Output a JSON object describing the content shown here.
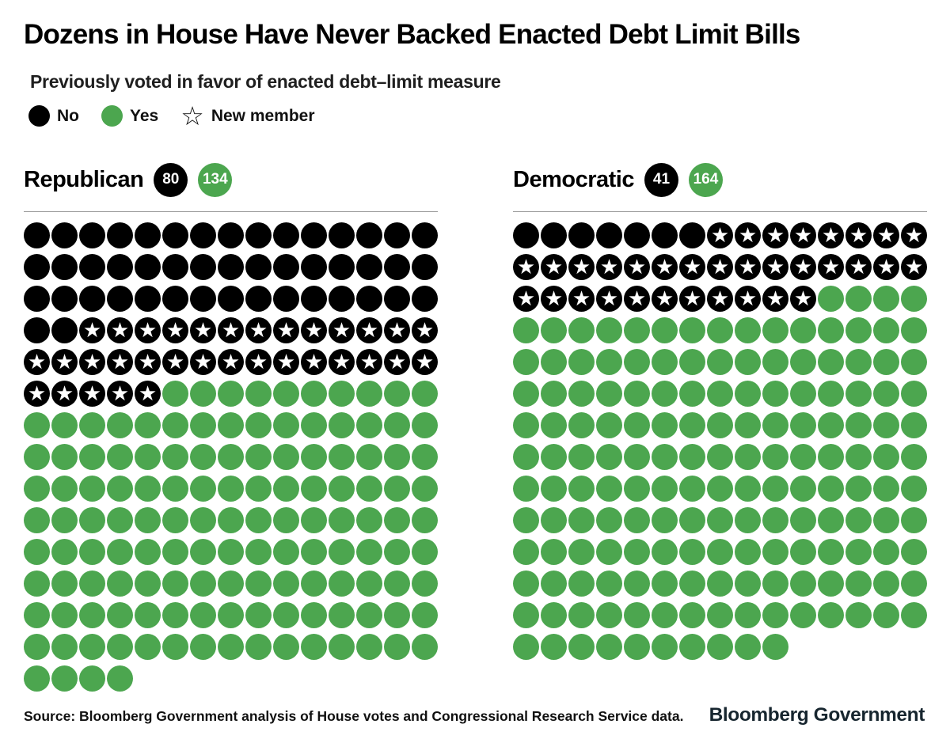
{
  "header": {
    "title": "Dozens in House Have Never Backed Enacted Debt Limit Bills",
    "subtitle": "Previously voted in favor of enacted debt–limit measure",
    "legend": [
      {
        "label": "No",
        "icon": "black-dot"
      },
      {
        "label": "Yes",
        "icon": "green-dot"
      },
      {
        "label": "New member",
        "icon": "star-outline"
      }
    ]
  },
  "colors": {
    "no_black": "#000000",
    "yes_green": "#4ca64f",
    "logo_navy": "#17262f",
    "rule_gray": "#999999"
  },
  "chart_data": {
    "type": "dot-matrix",
    "title": "Dozens in House Have Never Backed Enacted Debt Limit Bills",
    "subtitle": "Previously voted in favor of enacted debt–limit measure",
    "cell_legend": {
      "B": "No",
      "S": "No (new member)",
      "G": "Yes"
    },
    "columns_per_row": 15,
    "panels": [
      {
        "name": "Republican",
        "no_count": 80,
        "yes_count": 134,
        "rows": [
          "BBBBBBBBBBBBBBB",
          "BBBBBBBBBBBBBBB",
          "BBBBBBBBBBBBBBB",
          "BBSSSSSSSSSSSSS",
          "SSSSSSSSSSSSSSS",
          "SSSSSGGGGGGGGGG",
          "GGGGGGGGGGGGGGG",
          "GGGGGGGGGGGGGGG",
          "GGGGGGGGGGGGGGG",
          "GGGGGGGGGGGGGGG",
          "GGGGGGGGGGGGGGG",
          "GGGGGGGGGGGGGGG",
          "GGGGGGGGGGGGGGG",
          "GGGGGGGGGGGGGGG",
          "GGGG"
        ]
      },
      {
        "name": "Democratic",
        "no_count": 41,
        "yes_count": 164,
        "rows": [
          "BBBBBBBSSSSSSSS",
          "SSSSSSSSSSSSSSS",
          "SSSSSSSSSSSGGGG",
          "GGGGGGGGGGGGGGG",
          "GGGGGGGGGGGGGGG",
          "GGGGGGGGGGGGGGG",
          "GGGGGGGGGGGGGGG",
          "GGGGGGGGGGGGGGG",
          "GGGGGGGGGGGGGGG",
          "GGGGGGGGGGGGGGG",
          "GGGGGGGGGGGGGGG",
          "GGGGGGGGGGGGGGG",
          "GGGGGGGGGGGGGGG",
          "GGGGGGGGGG"
        ]
      }
    ]
  },
  "footer": {
    "source": "Source: Bloomberg Government analysis of House votes and Congressional Research Service data.",
    "logo": "Bloomberg Government"
  }
}
